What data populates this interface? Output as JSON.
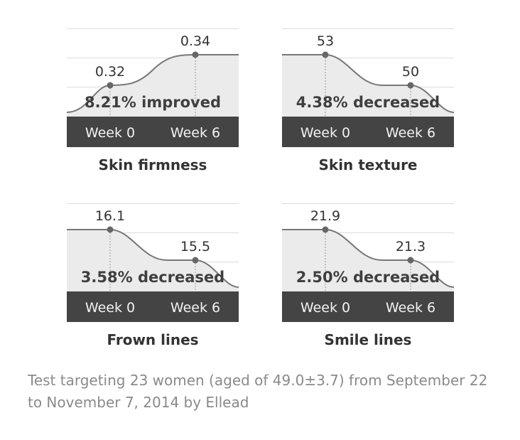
{
  "chart_data": [
    {
      "type": "line",
      "title": "Skin firmness",
      "categories": [
        "Week 0",
        "Week 6"
      ],
      "values": [
        0.32,
        0.34
      ],
      "annotation": "8.21% improved"
    },
    {
      "type": "line",
      "title": "Skin texture",
      "categories": [
        "Week 0",
        "Week 6"
      ],
      "values": [
        53,
        50
      ],
      "annotation": "4.38% decreased"
    },
    {
      "type": "line",
      "title": "Frown lines",
      "categories": [
        "Week 0",
        "Week 6"
      ],
      "values": [
        16.1,
        15.5
      ],
      "annotation": "3.58% decreased"
    },
    {
      "type": "line",
      "title": "Smile lines",
      "categories": [
        "Week 0",
        "Week 6"
      ],
      "values": [
        21.9,
        21.3
      ],
      "annotation": "2.50% decreased"
    }
  ],
  "footnote": "Test targeting 23 women (aged of 49.0±3.7) from September 22 to November 7, 2014 by Ellead",
  "colors": {
    "week_bar": "#444444",
    "line": "#777777",
    "area": "#ebebeb",
    "grid": "#dddddd"
  }
}
